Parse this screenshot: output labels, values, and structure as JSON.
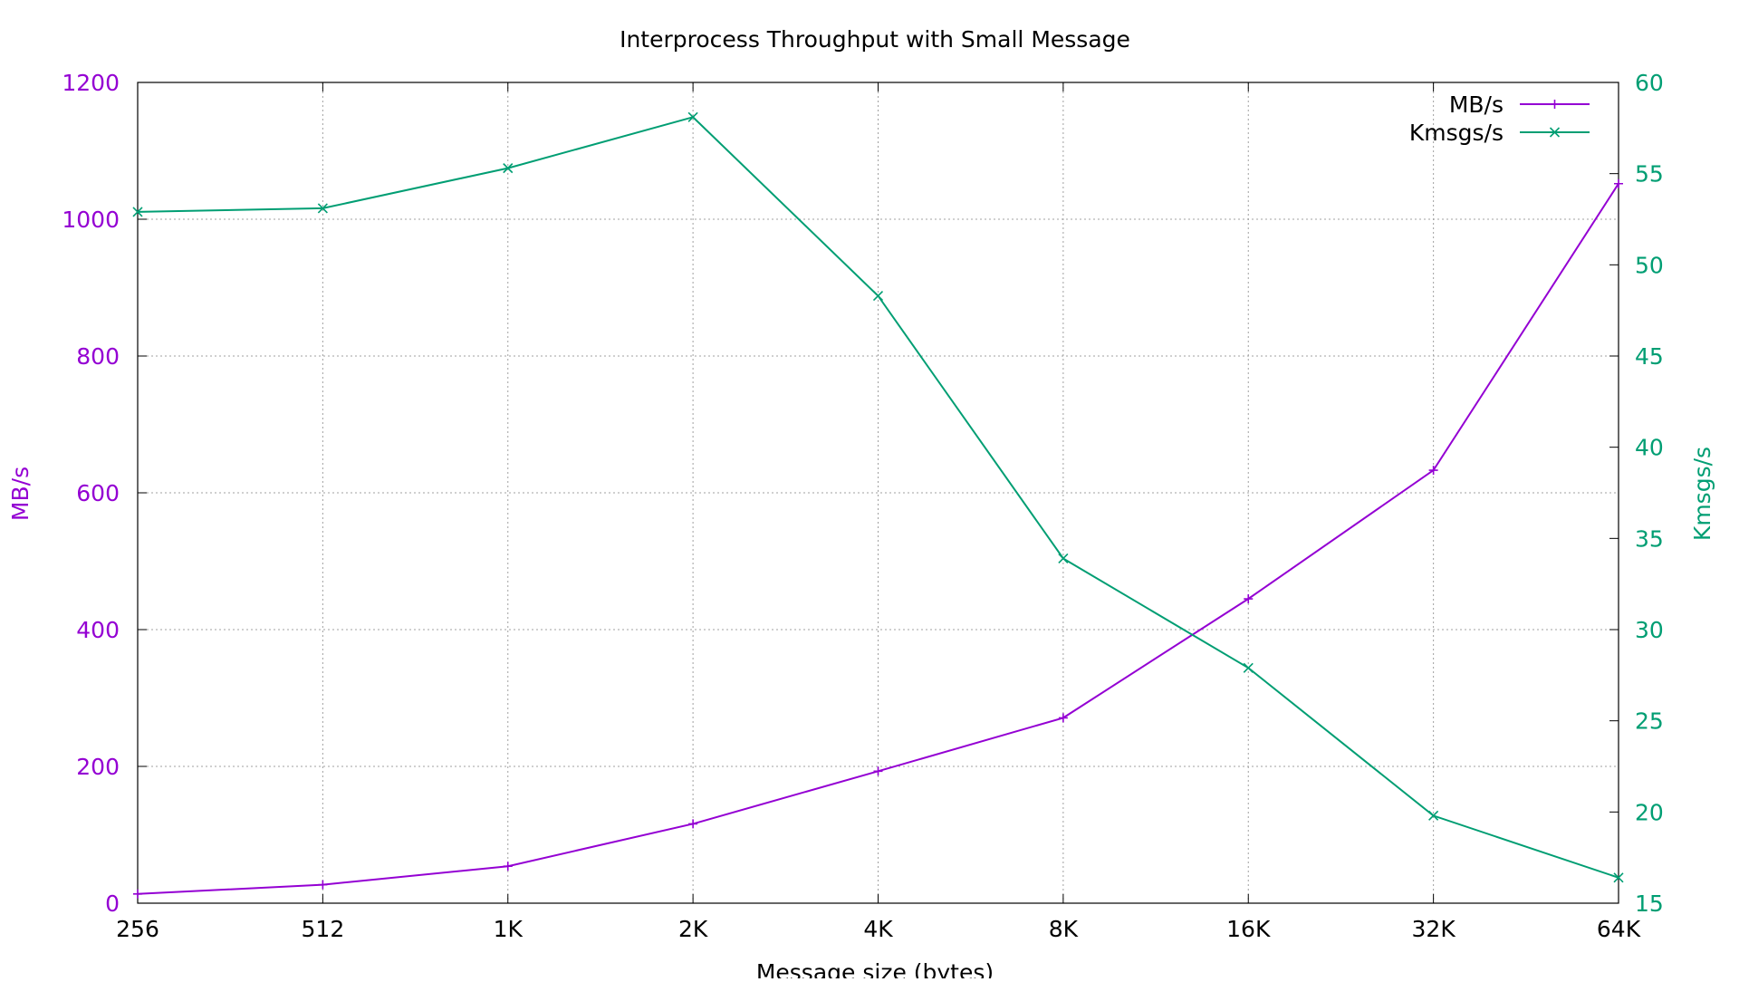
{
  "chart_data": {
    "type": "line",
    "title": "Interprocess Throughput with Small Message",
    "xlabel": "Message size (bytes)",
    "ylabel": "MB/s",
    "y2label": "Kmsgs/s",
    "categories": [
      "256",
      "512",
      "1K",
      "2K",
      "4K",
      "8K",
      "16K",
      "32K",
      "64K"
    ],
    "ylim": [
      0,
      1200
    ],
    "y2lim": [
      15,
      60
    ],
    "yticks": [
      "0",
      "200",
      "400",
      "600",
      "800",
      "1000",
      "1200"
    ],
    "y2ticks": [
      "15",
      "20",
      "25",
      "30",
      "35",
      "40",
      "45",
      "50",
      "55",
      "60"
    ],
    "grid": true,
    "legend_position": "top-right",
    "series": [
      {
        "name": "MB/s",
        "axis": "left",
        "color": "#9400d3",
        "marker": "plus",
        "values": [
          13.5,
          27,
          54,
          116,
          193,
          271,
          445,
          633,
          1052
        ]
      },
      {
        "name": "Kmsgs/s",
        "axis": "right",
        "color": "#009e73",
        "marker": "cross",
        "values": [
          52.9,
          53.1,
          55.3,
          58.1,
          48.3,
          33.9,
          27.9,
          19.8,
          16.4
        ]
      }
    ],
    "colors": {
      "left_axis": "#9400d3",
      "right_axis": "#009e73",
      "axis_frame": "#000000",
      "grid": "#a0a0a0"
    }
  }
}
